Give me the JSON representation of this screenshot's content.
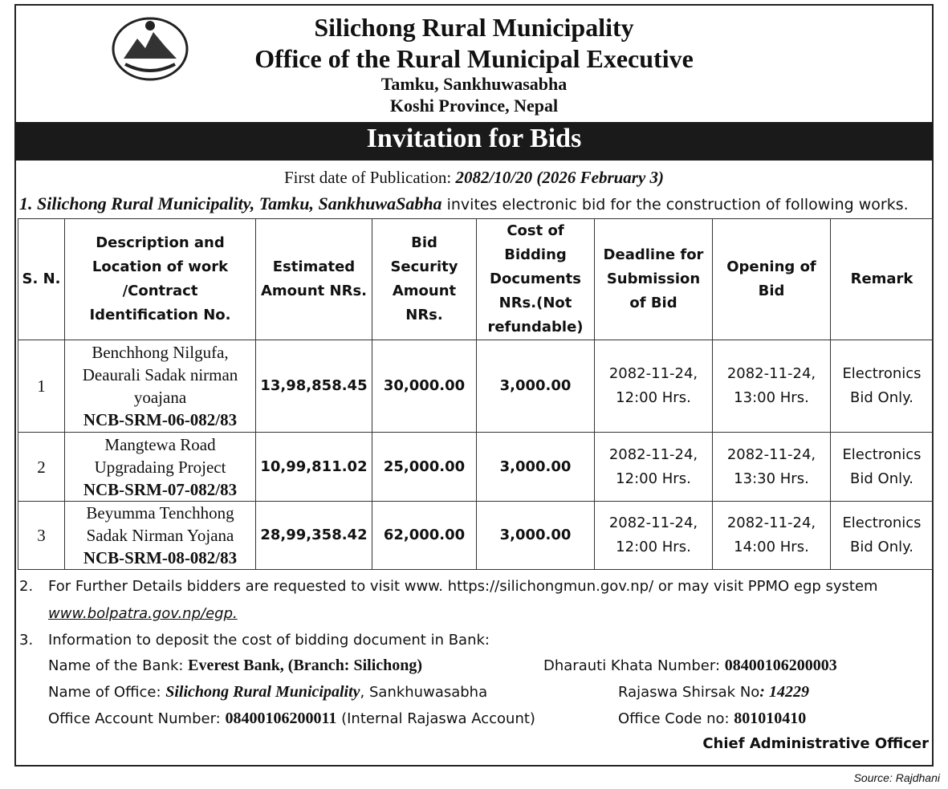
{
  "header": {
    "title": "Silichong Rural Municipality",
    "subtitle": "Office of the Rural Municipal Executive",
    "address": [
      "Tamku, Sankhuwasabha",
      "Koshi Province, Nepal"
    ]
  },
  "banner": "Invitation for Bids",
  "publication": {
    "label": "First date of Publication:",
    "date": "2082/10/20 (2026 February 3)"
  },
  "intro": {
    "entity": "1. Silichong Rural Municipality, Tamku, SankhuwaSabha",
    "text": "invites electronic bid for the construction of following works."
  },
  "table": {
    "columns": [
      "S. N.",
      "Description and Location of work /Contract Identification No.",
      "Estimated Amount NRs.",
      "Bid Security Amount NRs.",
      "Cost of Bidding Documents NRs.(Not refundable)",
      "Deadline for Submission of Bid",
      "Opening of Bid",
      "Remark"
    ],
    "rows": [
      {
        "sn": "1",
        "description": "Benchhong Nilgufa, Deaurali Sadak nirman yoajana",
        "contract_id": "NCB-SRM-06-082/83",
        "estimated": "13,98,858.45",
        "security": "30,000.00",
        "cost": "3,000.00",
        "deadline": "2082-11-24, 12:00 Hrs.",
        "opening": "2082-11-24, 13:00 Hrs.",
        "remark": "Electronics Bid Only."
      },
      {
        "sn": "2",
        "description": "Mangtewa Road Upgradaing Project",
        "contract_id": "NCB-SRM-07-082/83",
        "estimated": "10,99,811.02",
        "security": "25,000.00",
        "cost": "3,000.00",
        "deadline": "2082-11-24, 12:00 Hrs.",
        "opening": "2082-11-24, 13:30 Hrs.",
        "remark": "Electronics Bid Only."
      },
      {
        "sn": "3",
        "description": "Beyumma Tenchhong Sadak Nirman Yojana",
        "contract_id": "NCB-SRM-08-082/83",
        "estimated": "28,99,358.42",
        "security": "62,000.00",
        "cost": "3,000.00",
        "deadline": "2082-11-24, 12:00 Hrs.",
        "opening": "2082-11-24, 14:00 Hrs.",
        "remark": "Electronics Bid Only."
      }
    ]
  },
  "notes": [
    {
      "number": "2.",
      "text": "For Further Details bidders are requested to visit www. https://silichongmun.gov.np/ or may visit PPMO egp system",
      "link": "www.bolpatra.gov.np/egp."
    },
    {
      "number": "3.",
      "text": "Information to deposit the cost of bidding document in Bank:"
    }
  ],
  "bank": {
    "bank_name": {
      "label": "Name of the Bank:",
      "value": "Everest Bank, (Branch: Silichong)"
    },
    "dharauti": {
      "label": "Dharauti Khata Number:",
      "value": "08400106200003"
    },
    "office_name": {
      "label": "Name of Office:",
      "value": "Silichong Rural Municipality",
      "suffix": ", Sankhuwasabha"
    },
    "rajaswa": {
      "label": "Rajaswa Shirsak No",
      "value": ": 14229"
    },
    "account": {
      "label": "Office Account Number:",
      "value": "08400106200011",
      "suffix": "(Internal Rajaswa Account)"
    },
    "office_code": {
      "label": "Office Code no:",
      "value": "801010410"
    }
  },
  "signature": "Chief Administrative Officer",
  "source": "Source: Rajdhani"
}
